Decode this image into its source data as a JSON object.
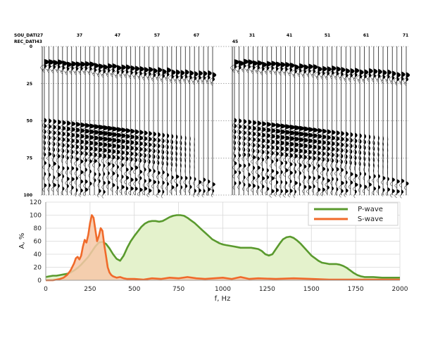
{
  "seismic": {
    "sou_label": "SOU_DATI27",
    "rec_label": "REC_DATI43",
    "panels": [
      {
        "source_value": "",
        "header_ticks": [
          "37",
          "47",
          "57",
          "67"
        ]
      },
      {
        "source_value": "45",
        "header_ticks": [
          "31",
          "41",
          "51",
          "61",
          "71"
        ]
      }
    ],
    "y_ticks": [
      "0",
      "25",
      "50",
      "75",
      "100"
    ]
  },
  "chart_data": {
    "type": "area",
    "xlabel": "f, Hz",
    "ylabel": "A, %",
    "xlim": [
      0,
      2000
    ],
    "ylim": [
      0,
      120
    ],
    "x_ticks": [
      0,
      250,
      500,
      750,
      1000,
      1250,
      1500,
      1750,
      2000
    ],
    "y_ticks": [
      0,
      20,
      40,
      60,
      80,
      100,
      120
    ],
    "grid": true,
    "legend_position": "top-right",
    "series": [
      {
        "name": "P-wave",
        "color": "#5a9a2e",
        "fill": "#e4f2cc",
        "x": [
          0,
          20,
          40,
          60,
          80,
          100,
          120,
          140,
          160,
          180,
          200,
          220,
          240,
          260,
          280,
          300,
          320,
          340,
          360,
          380,
          400,
          420,
          440,
          460,
          480,
          500,
          520,
          540,
          560,
          580,
          600,
          620,
          640,
          660,
          680,
          700,
          720,
          740,
          760,
          780,
          800,
          820,
          840,
          860,
          880,
          900,
          920,
          940,
          960,
          980,
          1000,
          1020,
          1040,
          1060,
          1080,
          1100,
          1120,
          1140,
          1160,
          1180,
          1200,
          1220,
          1240,
          1260,
          1280,
          1300,
          1320,
          1340,
          1360,
          1380,
          1400,
          1420,
          1440,
          1460,
          1480,
          1500,
          1520,
          1540,
          1560,
          1580,
          1600,
          1620,
          1640,
          1660,
          1680,
          1700,
          1720,
          1740,
          1760,
          1780,
          1800,
          1850,
          1900,
          1950,
          2000
        ],
        "values": [
          5,
          6,
          7,
          7,
          8,
          9,
          10,
          12,
          15,
          19,
          24,
          30,
          36,
          44,
          52,
          58,
          59,
          56,
          49,
          40,
          33,
          30,
          38,
          50,
          60,
          68,
          75,
          82,
          87,
          90,
          91,
          91,
          90,
          91,
          94,
          97,
          99,
          100,
          100,
          99,
          96,
          92,
          88,
          83,
          78,
          73,
          68,
          63,
          60,
          57,
          55,
          54,
          53,
          52,
          51,
          50,
          50,
          50,
          50,
          49,
          48,
          45,
          40,
          38,
          40,
          48,
          56,
          63,
          66,
          67,
          65,
          61,
          56,
          50,
          44,
          38,
          34,
          30,
          27,
          26,
          25,
          25,
          25,
          24,
          22,
          19,
          15,
          11,
          8,
          6,
          5,
          5,
          4,
          4,
          4
        ]
      },
      {
        "name": "S-wave",
        "color": "#f06a2a",
        "fill": "#f7c8a8",
        "x": [
          0,
          20,
          40,
          60,
          80,
          100,
          120,
          140,
          160,
          170,
          180,
          190,
          200,
          210,
          220,
          230,
          240,
          250,
          260,
          270,
          280,
          290,
          300,
          310,
          320,
          330,
          340,
          350,
          360,
          370,
          380,
          400,
          420,
          440,
          460,
          500,
          550,
          600,
          650,
          700,
          750,
          800,
          850,
          900,
          950,
          1000,
          1050,
          1100,
          1150,
          1200,
          1300,
          1400,
          1500,
          1600,
          1700,
          1800,
          1900,
          2000
        ],
        "values": [
          0,
          0,
          0,
          1,
          2,
          4,
          8,
          15,
          26,
          34,
          36,
          32,
          38,
          52,
          62,
          58,
          70,
          88,
          100,
          96,
          78,
          60,
          68,
          80,
          76,
          55,
          38,
          20,
          12,
          8,
          6,
          4,
          5,
          3,
          2,
          2,
          1,
          3,
          2,
          4,
          3,
          5,
          3,
          2,
          3,
          4,
          2,
          5,
          2,
          3,
          2,
          3,
          2,
          1,
          1,
          1,
          1,
          1
        ]
      }
    ]
  }
}
